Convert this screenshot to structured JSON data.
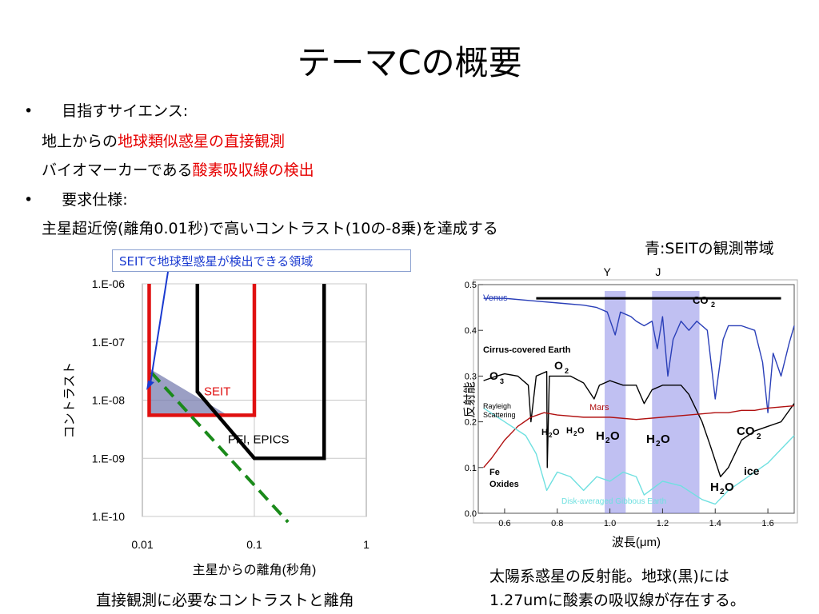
{
  "slide": {
    "title": "テーマCの概要",
    "bullets": [
      {
        "marker": "•",
        "heading": "目指すサイエンス:",
        "lines": [
          {
            "plain": "地上からの",
            "highlight": "地球類似惑星の直接観測"
          },
          {
            "plain": "バイオマーカーである",
            "highlight": "酸素吸収線の検出"
          }
        ]
      },
      {
        "marker": "•",
        "heading": "要求仕様:",
        "lines": [
          {
            "plain": "主星超近傍(離角0.01秒)で高いコントラスト(10の-8乗)を達成する",
            "highlight": ""
          }
        ]
      }
    ],
    "right_note": "青:SEITの観測帯域",
    "callout": "SEITで地球型惑星が検出できる領域",
    "left_caption": "直接観測に必要なコントラストと離角",
    "right_caption_1": "太陽系惑星の反射能。地球(黒)には",
    "right_caption_2": "1.27umに酸素の吸収線が存在する。"
  },
  "colors": {
    "highlight_red": "#e60000",
    "callout_blue": "#1a3ad0",
    "seit_red": "#e01010",
    "band_blue": "#8c8ce8",
    "dashed_green": "#1a8a1a"
  },
  "chart_data": [
    {
      "type": "line",
      "xlabel": "主星からの離角(秒角)",
      "ylabel": "コントラスト",
      "x_scale": "log",
      "y_scale": "log",
      "xlim": [
        0.01,
        1
      ],
      "ylim": [
        1e-10,
        1e-06
      ],
      "x_ticks": [
        "0.01",
        "0.1",
        "1"
      ],
      "y_ticks": [
        "1.E-06",
        "1.E-07",
        "1.E-08",
        "1.E-09",
        "1.E-10"
      ],
      "grid": "vertical at 0.1",
      "series": [
        {
          "name": "SEIT",
          "color": "#e01010",
          "points": [
            [
              0.0115,
              1e-06
            ],
            [
              0.0115,
              5.5e-09
            ],
            [
              0.1,
              5.5e-09
            ],
            [
              0.1,
              1e-06
            ]
          ]
        },
        {
          "name": "PFI, EPICS",
          "color": "#000000",
          "points": [
            [
              0.031,
              1e-06
            ],
            [
              0.031,
              1.4e-08
            ],
            [
              0.1,
              1e-09
            ],
            [
              0.42,
              1e-09
            ],
            [
              0.42,
              1e-06
            ]
          ]
        },
        {
          "name": "",
          "color": "#1a8a1a",
          "dash": true,
          "points": [
            [
              0.012,
              3e-08
            ],
            [
              0.2,
              8e-11
            ]
          ]
        }
      ],
      "shaded_region": [
        [
          0.0115,
          3.5e-08
        ],
        [
          0.0115,
          5.5e-09
        ],
        [
          0.058,
          5.5e-09
        ]
      ],
      "labels": [
        {
          "text": "SEIT",
          "x": 0.0355,
          "y": 1.2e-08
        },
        {
          "text": "PFI, EPICS",
          "x": 0.058,
          "y": 1.8e-09
        }
      ]
    },
    {
      "type": "line",
      "xlabel": "波長(μm)",
      "ylabel": "反射能",
      "xlim": [
        0.5,
        1.7
      ],
      "ylim": [
        0.0,
        0.5
      ],
      "x_ticks": [
        "0.6",
        "0.8",
        "1.0",
        "1.2",
        "1.4",
        "1.6"
      ],
      "y_ticks": [
        "0.0",
        "0.1",
        "0.2",
        "0.3",
        "0.4",
        "0.5"
      ],
      "bands": [
        {
          "name": "Y",
          "range": [
            0.98,
            1.06
          ]
        },
        {
          "name": "J",
          "range": [
            1.16,
            1.34
          ]
        }
      ],
      "series": [
        {
          "name": "Venus",
          "color": "#2a3fb8",
          "points": [
            [
              0.52,
              0.47
            ],
            [
              0.6,
              0.47
            ],
            [
              0.7,
              0.465
            ],
            [
              0.8,
              0.46
            ],
            [
              0.9,
              0.455
            ],
            [
              0.95,
              0.45
            ],
            [
              0.99,
              0.44
            ],
            [
              1.02,
              0.39
            ],
            [
              1.04,
              0.44
            ],
            [
              1.08,
              0.43
            ],
            [
              1.1,
              0.42
            ],
            [
              1.13,
              0.41
            ],
            [
              1.16,
              0.42
            ],
            [
              1.18,
              0.36
            ],
            [
              1.2,
              0.43
            ],
            [
              1.22,
              0.3
            ],
            [
              1.24,
              0.38
            ],
            [
              1.27,
              0.42
            ],
            [
              1.3,
              0.4
            ],
            [
              1.33,
              0.42
            ],
            [
              1.37,
              0.4
            ],
            [
              1.4,
              0.25
            ],
            [
              1.43,
              0.38
            ],
            [
              1.45,
              0.41
            ],
            [
              1.5,
              0.41
            ],
            [
              1.55,
              0.4
            ],
            [
              1.58,
              0.33
            ],
            [
              1.6,
              0.22
            ],
            [
              1.62,
              0.35
            ],
            [
              1.65,
              0.3
            ],
            [
              1.68,
              0.37
            ],
            [
              1.7,
              0.41
            ]
          ]
        },
        {
          "name": "Cirrus-covered Earth",
          "color": "#000000",
          "points": [
            [
              0.52,
              0.29
            ],
            [
              0.57,
              0.3
            ],
            [
              0.6,
              0.305
            ],
            [
              0.65,
              0.3
            ],
            [
              0.69,
              0.28
            ],
            [
              0.7,
              0.2
            ],
            [
              0.72,
              0.3
            ],
            [
              0.76,
              0.31
            ],
            [
              0.762,
              0.1
            ],
            [
              0.77,
              0.3
            ],
            [
              0.8,
              0.3
            ],
            [
              0.85,
              0.3
            ],
            [
              0.9,
              0.285
            ],
            [
              0.94,
              0.25
            ],
            [
              0.96,
              0.28
            ],
            [
              1.0,
              0.29
            ],
            [
              1.05,
              0.28
            ],
            [
              1.1,
              0.28
            ],
            [
              1.13,
              0.24
            ],
            [
              1.16,
              0.27
            ],
            [
              1.2,
              0.28
            ],
            [
              1.27,
              0.28
            ],
            [
              1.3,
              0.26
            ],
            [
              1.35,
              0.2
            ],
            [
              1.38,
              0.15
            ],
            [
              1.42,
              0.08
            ],
            [
              1.45,
              0.1
            ],
            [
              1.5,
              0.16
            ],
            [
              1.55,
              0.18
            ],
            [
              1.6,
              0.19
            ],
            [
              1.65,
              0.2
            ],
            [
              1.7,
              0.24
            ]
          ]
        },
        {
          "name": "Mars",
          "color": "#b01010",
          "points": [
            [
              0.52,
              0.1
            ],
            [
              0.55,
              0.12
            ],
            [
              0.6,
              0.16
            ],
            [
              0.65,
              0.19
            ],
            [
              0.7,
              0.21
            ],
            [
              0.75,
              0.22
            ],
            [
              0.8,
              0.215
            ],
            [
              0.9,
              0.21
            ],
            [
              1.0,
              0.21
            ],
            [
              1.1,
              0.205
            ],
            [
              1.2,
              0.21
            ],
            [
              1.3,
              0.215
            ],
            [
              1.4,
              0.22
            ],
            [
              1.45,
              0.22
            ],
            [
              1.5,
              0.225
            ],
            [
              1.55,
              0.225
            ],
            [
              1.6,
              0.23
            ],
            [
              1.7,
              0.235
            ]
          ]
        },
        {
          "name": "Disk-averaged Gibbous Earth",
          "color": "#6fe0e0",
          "points": [
            [
              0.52,
              0.23
            ],
            [
              0.6,
              0.2
            ],
            [
              0.68,
              0.17
            ],
            [
              0.72,
              0.13
            ],
            [
              0.76,
              0.05
            ],
            [
              0.8,
              0.09
            ],
            [
              0.85,
              0.08
            ],
            [
              0.9,
              0.05
            ],
            [
              0.95,
              0.08
            ],
            [
              1.0,
              0.07
            ],
            [
              1.05,
              0.09
            ],
            [
              1.1,
              0.08
            ],
            [
              1.13,
              0.04
            ],
            [
              1.2,
              0.07
            ],
            [
              1.27,
              0.06
            ],
            [
              1.35,
              0.03
            ],
            [
              1.4,
              0.02
            ],
            [
              1.45,
              0.05
            ],
            [
              1.5,
              0.07
            ],
            [
              1.55,
              0.09
            ],
            [
              1.6,
              0.11
            ],
            [
              1.65,
              0.14
            ],
            [
              1.7,
              0.17
            ]
          ]
        }
      ],
      "annotations": [
        "Venus",
        "CO",
        "2",
        "Cirrus-covered Earth",
        "O",
        "3",
        "O",
        "2",
        "Rayleigh",
        "Scattering",
        "Mars",
        "H",
        "2",
        "O",
        "H",
        "2",
        "O",
        "H",
        "2",
        "O",
        "H",
        "2",
        "O",
        "CO",
        "2",
        "Fe",
        "Oxides",
        "ice",
        "H",
        "2",
        "O",
        "Disk-averaged Gibbous Earth"
      ]
    }
  ]
}
